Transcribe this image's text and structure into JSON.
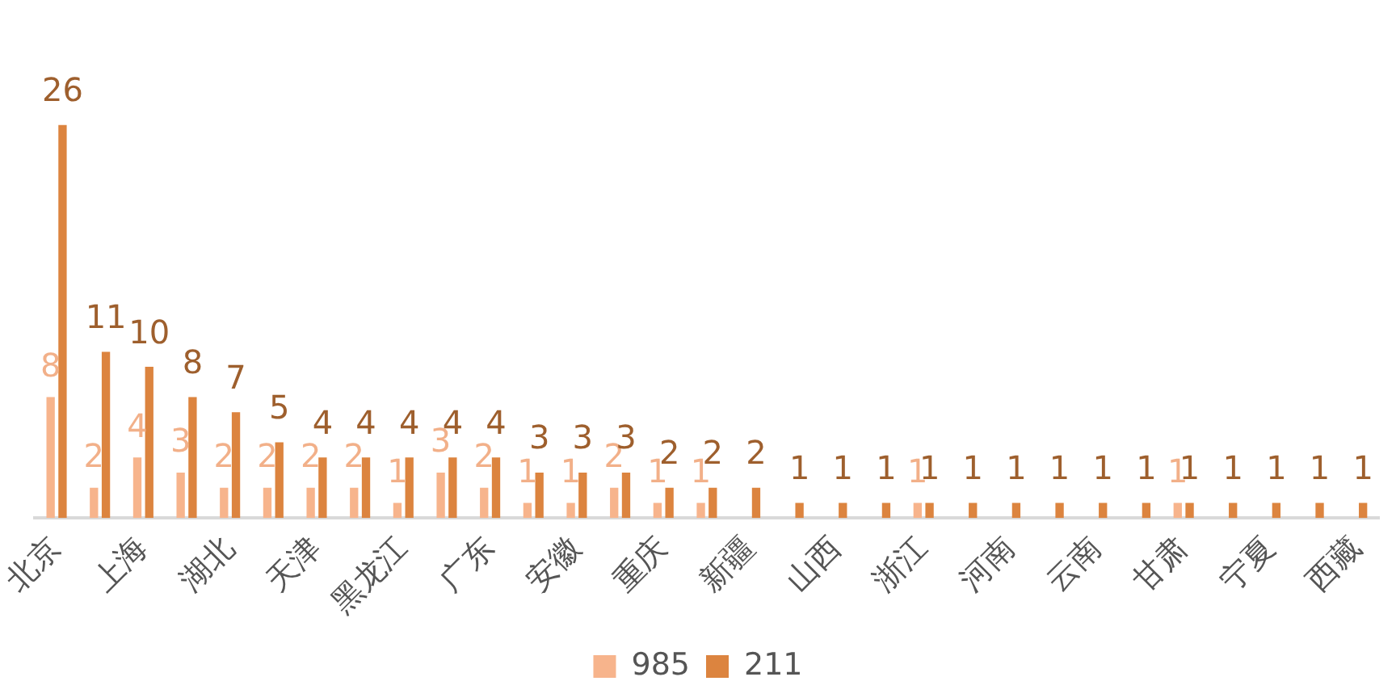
{
  "chart_data": {
    "type": "bar",
    "categories": [
      "北京",
      null,
      "上海",
      null,
      "湖北",
      null,
      "天津",
      null,
      "黑龙江",
      null,
      "广东",
      null,
      "安徽",
      null,
      "重庆",
      null,
      "新疆",
      null,
      "山西",
      null,
      "浙江",
      null,
      "河南",
      null,
      "云南",
      null,
      "甘肃",
      null,
      "宁夏",
      null,
      "西藏"
    ],
    "series": [
      {
        "name": "985",
        "color": "#f7b48c",
        "values": [
          8,
          2,
          4,
          3,
          2,
          2,
          2,
          2,
          1,
          3,
          2,
          1,
          1,
          2,
          1,
          1,
          null,
          null,
          null,
          null,
          1,
          null,
          null,
          null,
          null,
          null,
          1,
          null,
          null,
          null,
          null
        ]
      },
      {
        "name": "211",
        "color": "#dc843f",
        "values": [
          26,
          11,
          10,
          8,
          7,
          5,
          4,
          4,
          4,
          4,
          4,
          3,
          3,
          3,
          2,
          2,
          2,
          1,
          1,
          1,
          1,
          1,
          1,
          1,
          1,
          1,
          1,
          1,
          1,
          1,
          1
        ]
      }
    ],
    "data_labels": true,
    "legend": "bottom",
    "grid": false
  }
}
